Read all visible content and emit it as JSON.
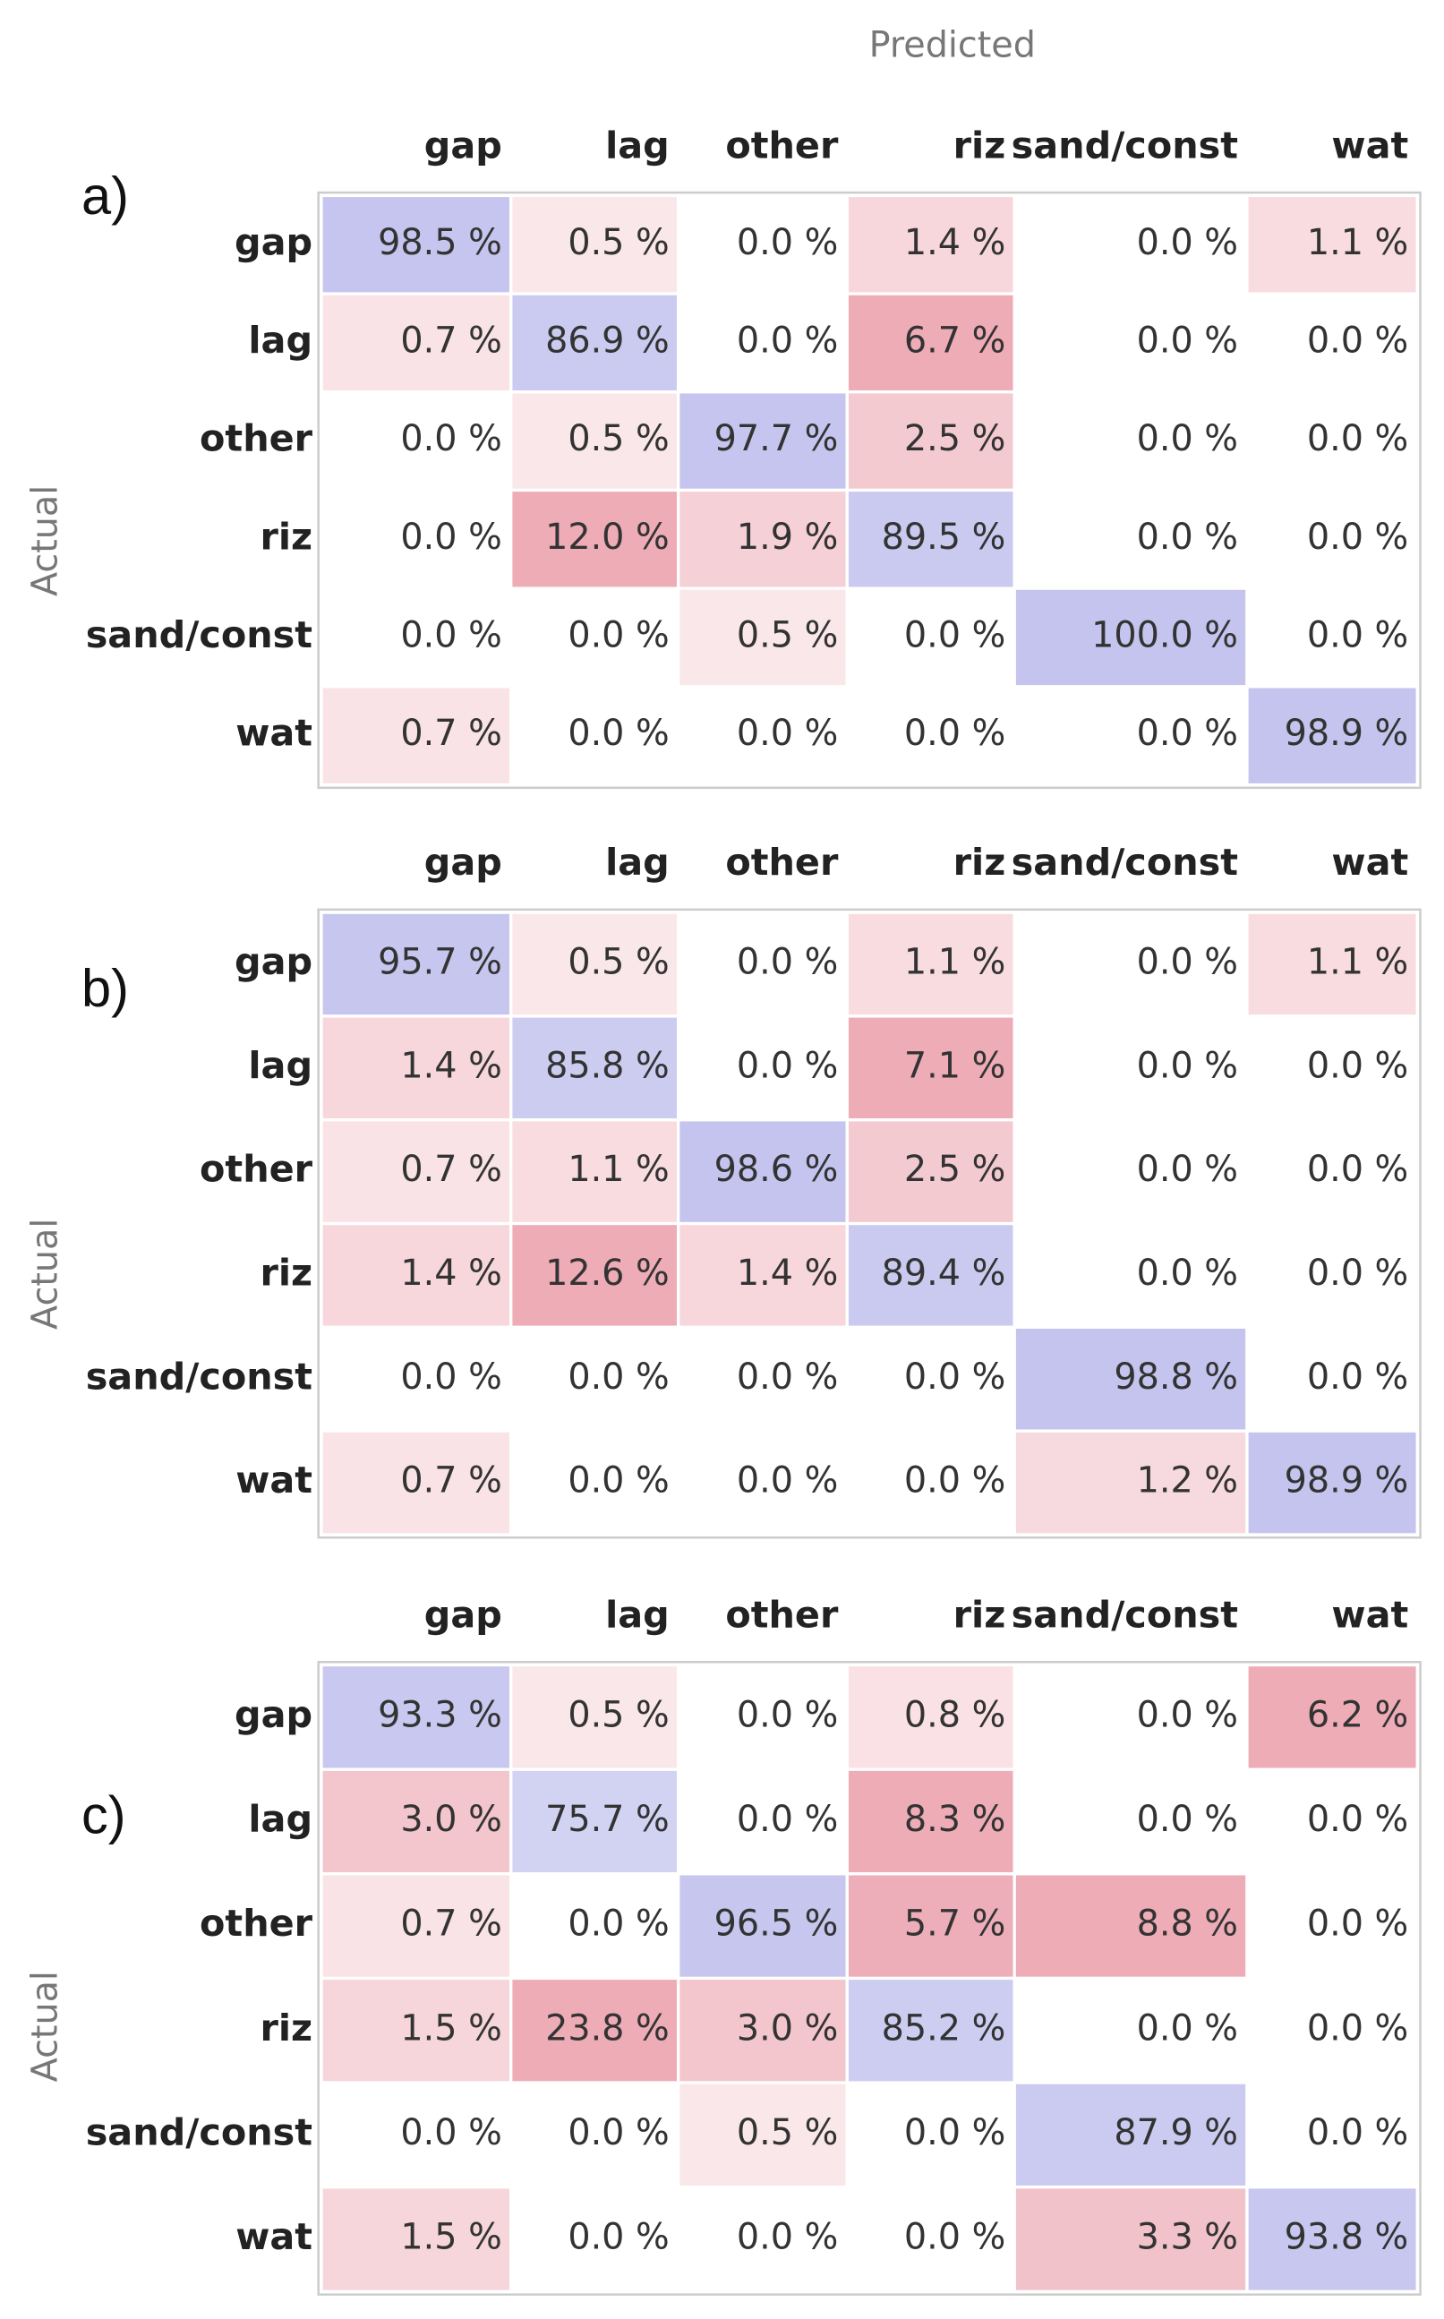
{
  "chart_data": [
    {
      "type": "heatmap",
      "panel": "a)",
      "xlabel": "Predicted",
      "ylabel": "Actual",
      "x_categories": [
        "gap",
        "lag",
        "other",
        "riz",
        "sand/const",
        "wat"
      ],
      "y_categories": [
        "gap",
        "lag",
        "other",
        "riz",
        "sand/const",
        "wat"
      ],
      "diagonal_color": "#6b6bd6",
      "off_diagonal_color": "#d9475f",
      "values": [
        [
          98.5,
          0.5,
          0.0,
          1.4,
          0.0,
          1.1
        ],
        [
          0.7,
          86.9,
          0.0,
          6.7,
          0.0,
          0.0
        ],
        [
          0.0,
          0.5,
          97.7,
          2.5,
          0.0,
          0.0
        ],
        [
          0.0,
          12.0,
          1.9,
          89.5,
          0.0,
          0.0
        ],
        [
          0.0,
          0.0,
          0.5,
          0.0,
          100.0,
          0.0
        ],
        [
          0.7,
          0.0,
          0.0,
          0.0,
          0.0,
          98.9
        ]
      ],
      "value_labels": [
        [
          "98.5 %",
          "0.5 %",
          "0.0 %",
          "1.4 %",
          "0.0 %",
          "1.1 %"
        ],
        [
          "0.7 %",
          "86.9 %",
          "0.0 %",
          "6.7 %",
          "0.0 %",
          "0.0 %"
        ],
        [
          "0.0 %",
          "0.5 %",
          "97.7 %",
          "2.5 %",
          "0.0 %",
          "0.0 %"
        ],
        [
          "0.0 %",
          "12.0 %",
          "1.9 %",
          "89.5 %",
          "0.0 %",
          "0.0 %"
        ],
        [
          "0.0 %",
          "0.0 %",
          "0.5 %",
          "0.0 %",
          "100.0 %",
          "0.0 %"
        ],
        [
          "0.7 %",
          "0.0 %",
          "0.0 %",
          "0.0 %",
          "0.0 %",
          "98.9 %"
        ]
      ]
    },
    {
      "type": "heatmap",
      "panel": "b)",
      "ylabel": "Actual",
      "x_categories": [
        "gap",
        "lag",
        "other",
        "riz",
        "sand/const",
        "wat"
      ],
      "y_categories": [
        "gap",
        "lag",
        "other",
        "riz",
        "sand/const",
        "wat"
      ],
      "diagonal_color": "#6b6bd6",
      "off_diagonal_color": "#d9475f",
      "values": [
        [
          95.7,
          0.5,
          0.0,
          1.1,
          0.0,
          1.1
        ],
        [
          1.4,
          85.8,
          0.0,
          7.1,
          0.0,
          0.0
        ],
        [
          0.7,
          1.1,
          98.6,
          2.5,
          0.0,
          0.0
        ],
        [
          1.4,
          12.6,
          1.4,
          89.4,
          0.0,
          0.0
        ],
        [
          0.0,
          0.0,
          0.0,
          0.0,
          98.8,
          0.0
        ],
        [
          0.7,
          0.0,
          0.0,
          0.0,
          1.2,
          98.9
        ]
      ],
      "value_labels": [
        [
          "95.7 %",
          "0.5 %",
          "0.0 %",
          "1.1 %",
          "0.0 %",
          "1.1 %"
        ],
        [
          "1.4 %",
          "85.8 %",
          "0.0 %",
          "7.1 %",
          "0.0 %",
          "0.0 %"
        ],
        [
          "0.7 %",
          "1.1 %",
          "98.6 %",
          "2.5 %",
          "0.0 %",
          "0.0 %"
        ],
        [
          "1.4 %",
          "12.6 %",
          "1.4 %",
          "89.4 %",
          "0.0 %",
          "0.0 %"
        ],
        [
          "0.0 %",
          "0.0 %",
          "0.0 %",
          "0.0 %",
          "98.8 %",
          "0.0 %"
        ],
        [
          "0.7 %",
          "0.0 %",
          "0.0 %",
          "0.0 %",
          "1.2 %",
          "98.9 %"
        ]
      ]
    },
    {
      "type": "heatmap",
      "panel": "c)",
      "ylabel": "Actual",
      "x_categories": [
        "gap",
        "lag",
        "other",
        "riz",
        "sand/const",
        "wat"
      ],
      "y_categories": [
        "gap",
        "lag",
        "other",
        "riz",
        "sand/const",
        "wat"
      ],
      "diagonal_color": "#6b6bd6",
      "off_diagonal_color": "#d9475f",
      "values": [
        [
          93.3,
          0.5,
          0.0,
          0.8,
          0.0,
          6.2
        ],
        [
          3.0,
          75.7,
          0.0,
          8.3,
          0.0,
          0.0
        ],
        [
          0.7,
          0.0,
          96.5,
          5.7,
          8.8,
          0.0
        ],
        [
          1.5,
          23.8,
          3.0,
          85.2,
          0.0,
          0.0
        ],
        [
          0.0,
          0.0,
          0.5,
          0.0,
          87.9,
          0.0
        ],
        [
          1.5,
          0.0,
          0.0,
          0.0,
          3.3,
          93.8
        ]
      ],
      "value_labels": [
        [
          "93.3 %",
          "0.5 %",
          "0.0 %",
          "0.8 %",
          "0.0 %",
          "6.2 %"
        ],
        [
          "3.0 %",
          "75.7 %",
          "0.0 %",
          "8.3 %",
          "0.0 %",
          "0.0 %"
        ],
        [
          "0.7 %",
          "0.0 %",
          "96.5 %",
          "5.7 %",
          "8.8 %",
          "0.0 %"
        ],
        [
          "1.5 %",
          "23.8 %",
          "3.0 %",
          "85.2 %",
          "0.0 %",
          "0.0 %"
        ],
        [
          "0.0 %",
          "0.0 %",
          "0.5 %",
          "0.0 %",
          "87.9 %",
          "0.0 %"
        ],
        [
          "1.5 %",
          "0.0 %",
          "0.0 %",
          "0.0 %",
          "3.3 %",
          "93.8 %"
        ]
      ]
    }
  ]
}
